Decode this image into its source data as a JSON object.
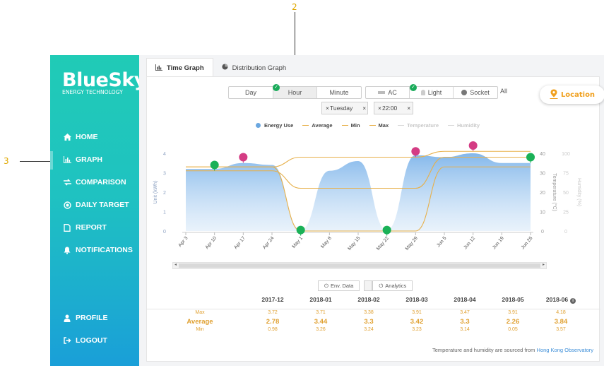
{
  "annotations": {
    "top_marker": "2",
    "left_marker": "3"
  },
  "brand": {
    "name": "BlueSky",
    "subtitle": "ENERGY TECHNOLOGY"
  },
  "sidebar": {
    "items": [
      {
        "label": "HOME",
        "icon": "home-icon"
      },
      {
        "label": "GRAPH",
        "icon": "bar-chart-icon"
      },
      {
        "label": "COMPARISON",
        "icon": "arrows-swap-icon"
      },
      {
        "label": "DAILY TARGET",
        "icon": "target-icon"
      },
      {
        "label": "REPORT",
        "icon": "document-icon"
      },
      {
        "label": "NOTIFICATIONS",
        "icon": "bell-icon"
      }
    ],
    "bottom_items": [
      {
        "label": "PROFILE",
        "icon": "user-icon"
      },
      {
        "label": "LOGOUT",
        "icon": "logout-icon"
      }
    ]
  },
  "tabs": [
    {
      "label": "Time Graph",
      "icon": "bar-chart-icon",
      "active": true
    },
    {
      "label": "Distribution Graph",
      "icon": "pie-chart-icon",
      "active": false
    }
  ],
  "controls": {
    "granularity": {
      "options": [
        "Day",
        "Hour",
        "Minute"
      ],
      "selected": "Hour"
    },
    "devices": {
      "options": [
        "AC",
        "Light",
        "Socket"
      ],
      "selected": "AC",
      "all_label": "All"
    },
    "chips": [
      {
        "label": "Tuesday",
        "close": "×"
      },
      {
        "label": "22:00",
        "close": "×"
      }
    ],
    "location_label": "Location"
  },
  "legend": [
    {
      "label": "Energy Use",
      "color": "#6ba7e0",
      "kind": "area"
    },
    {
      "label": "Average",
      "color": "#e7b04a",
      "kind": "line"
    },
    {
      "label": "Min",
      "color": "#e7b04a",
      "kind": "line"
    },
    {
      "label": "Max",
      "color": "#e7b04a",
      "kind": "line"
    },
    {
      "label": "Temperature",
      "color": "#d8d8d8",
      "kind": "line",
      "dim": true
    },
    {
      "label": "Humidity",
      "color": "#d8d8d8",
      "kind": "line",
      "dim": true
    }
  ],
  "chart_data": {
    "type": "area",
    "x": [
      "Apr 3",
      "Apr 10",
      "Apr 17",
      "Apr 24",
      "May 1",
      "May 8",
      "May 15",
      "May 22",
      "May 29",
      "Jun 5",
      "Jun 12",
      "Jun 19",
      "Jun 26"
    ],
    "series": [
      {
        "name": "Energy Use",
        "values": [
          3.2,
          3.2,
          3.5,
          3.4,
          0.05,
          3.1,
          3.6,
          0.05,
          3.9,
          3.8,
          4.0,
          3.5,
          3.5
        ]
      },
      {
        "name": "Average",
        "values": [
          3.1,
          3.1,
          3.1,
          3.1,
          2.2,
          2.2,
          2.2,
          2.2,
          2.2,
          3.8,
          3.8,
          3.8,
          3.8
        ]
      },
      {
        "name": "Min",
        "values": [
          3.3,
          3.3,
          3.3,
          3.3,
          0.0,
          0.0,
          0.0,
          0.0,
          0.0,
          3.3,
          3.3,
          3.3,
          3.3
        ]
      },
      {
        "name": "Max",
        "values": [
          3.3,
          3.3,
          3.3,
          3.3,
          3.8,
          3.8,
          3.8,
          3.8,
          3.8,
          4.1,
          4.1,
          4.1,
          4.1
        ]
      }
    ],
    "markers": {
      "max": [
        {
          "x": "Apr 17",
          "y": 3.8
        },
        {
          "x": "May 29",
          "y": 4.1
        },
        {
          "x": "Jun 12",
          "y": 4.4
        }
      ],
      "min": [
        {
          "x": "Apr 10",
          "y": 3.4
        },
        {
          "x": "May 1",
          "y": 0.05
        },
        {
          "x": "May 22",
          "y": 0.05
        },
        {
          "x": "Jun 26",
          "y": 3.8
        }
      ]
    },
    "ylabel": "Unit (kWh)",
    "y2label": "Temperature (°C)",
    "y3label": "Humidity (%)",
    "yticks": [
      "0",
      "1",
      "2",
      "3",
      "4"
    ],
    "y2ticks": [
      "0",
      "10",
      "20",
      "30",
      "40"
    ],
    "y3ticks": [
      "0",
      "25",
      "50",
      "75",
      "100"
    ],
    "ylim": [
      0,
      4
    ]
  },
  "env_buttons": [
    {
      "label": "Env. Data",
      "icon": "power-icon"
    },
    {
      "label": "Analytics",
      "icon": "power-icon"
    }
  ],
  "summary": {
    "row_labels": {
      "max": "Max",
      "avg": "Average",
      "min": "Min"
    },
    "columns": [
      {
        "month": "2017-12",
        "max": "3.72",
        "avg": "2.78",
        "min": "0.98"
      },
      {
        "month": "2018-01",
        "max": "3.71",
        "avg": "3.44",
        "min": "3.26"
      },
      {
        "month": "2018-02",
        "max": "3.38",
        "avg": "3.3",
        "min": "3.24"
      },
      {
        "month": "2018-03",
        "max": "3.91",
        "avg": "3.42",
        "min": "3.23"
      },
      {
        "month": "2018-04",
        "max": "3.47",
        "avg": "3.3",
        "min": "3.14"
      },
      {
        "month": "2018-05",
        "max": "3.91",
        "avg": "2.26",
        "min": "0.05"
      },
      {
        "month": "2018-06",
        "max": "4.18",
        "avg": "3.84",
        "min": "3.57"
      }
    ]
  },
  "footer": {
    "text": "Temperature and humidity are sourced from",
    "link": "Hong Kong Observatory"
  }
}
